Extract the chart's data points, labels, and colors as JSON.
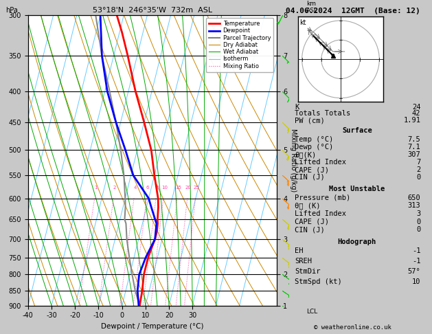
{
  "title_left": "53°18'N  246°35'W  732m  ASL",
  "title_right": "04.06.2024  12GMT  (Base: 12)",
  "xlabel": "Dewpoint / Temperature (°C)",
  "p_levels": [
    300,
    350,
    400,
    450,
    500,
    550,
    600,
    650,
    700,
    750,
    800,
    850,
    900
  ],
  "temp_ticks": [
    -40,
    -30,
    -20,
    -10,
    0,
    10,
    20,
    30
  ],
  "km_ticks": [
    1,
    2,
    3,
    4,
    5,
    6,
    7,
    8
  ],
  "km_pressures": [
    900,
    800,
    700,
    600,
    500,
    400,
    350,
    300
  ],
  "plot_bg": "#ffffff",
  "skew_factor": 28.0,
  "legend_entries": [
    {
      "label": "Temperature",
      "color": "#ff0000",
      "lw": 2.0,
      "ls": "-"
    },
    {
      "label": "Dewpoint",
      "color": "#0000ff",
      "lw": 2.0,
      "ls": "-"
    },
    {
      "label": "Parcel Trajectory",
      "color": "#808080",
      "lw": 1.5,
      "ls": "-"
    },
    {
      "label": "Dry Adiabat",
      "color": "#cc8800",
      "lw": 0.8,
      "ls": "-"
    },
    {
      "label": "Wet Adiabat",
      "color": "#00aa00",
      "lw": 0.8,
      "ls": "-"
    },
    {
      "label": "Isotherm",
      "color": "#66ccff",
      "lw": 0.8,
      "ls": "-"
    },
    {
      "label": "Mixing Ratio",
      "color": "#ff44aa",
      "lw": 0.8,
      "ls": ":"
    }
  ],
  "temp_profile": {
    "pressure": [
      300,
      320,
      350,
      400,
      450,
      500,
      550,
      600,
      620,
      650,
      660,
      680,
      700,
      750,
      800,
      850,
      900
    ],
    "temp": [
      -33,
      -29,
      -24,
      -17,
      -10,
      -4,
      0,
      4,
      5,
      6,
      6.5,
      7,
      7,
      6,
      6,
      7,
      7.5
    ]
  },
  "dewp_profile": {
    "pressure": [
      300,
      350,
      400,
      450,
      500,
      550,
      600,
      620,
      650,
      660,
      680,
      700,
      750,
      800,
      850,
      900
    ],
    "temp": [
      -40,
      -35,
      -29,
      -22,
      -15,
      -9,
      0,
      2,
      5,
      6,
      6.5,
      7,
      5,
      4,
      5,
      7.1
    ]
  },
  "parcel_profile": {
    "pressure": [
      900,
      850,
      800,
      750,
      700,
      660,
      650,
      620,
      600,
      550,
      500,
      450,
      400,
      350,
      300
    ],
    "temp": [
      7.5,
      4,
      1,
      -2,
      -5,
      -7,
      -8,
      -9,
      -10,
      -13,
      -17,
      -22,
      -28,
      -35,
      -42
    ]
  },
  "stats": {
    "K": 24,
    "Totals_Totals": 42,
    "PW_cm": "1.91",
    "Surface_Temp": "7.5",
    "Surface_Dewp": "7.1",
    "Surface_theta_e": 307,
    "Surface_Lifted_Index": 7,
    "Surface_CAPE": 2,
    "Surface_CIN": 0,
    "MU_Pressure": 650,
    "MU_theta_e": 313,
    "MU_Lifted_Index": 3,
    "MU_CAPE": 0,
    "MU_CIN": 0,
    "EH": -1,
    "SREH": -1,
    "StmDir": "57°",
    "StmSpd_kt": 10
  },
  "wind_pressures": [
    900,
    850,
    800,
    750,
    700,
    650,
    600,
    550,
    500,
    450,
    400,
    350,
    300
  ],
  "wind_u_ms": [
    -2,
    -3,
    -4,
    -5,
    -6,
    -7,
    -8,
    -9,
    -7,
    -5,
    -3,
    -2,
    1
  ],
  "wind_v_ms": [
    1,
    2,
    3,
    4,
    5,
    6,
    7,
    8,
    7,
    5,
    3,
    2,
    2
  ],
  "hodo_u_kt": [
    -4,
    -6,
    -8,
    -10,
    -12,
    -14,
    -16,
    -17,
    -14,
    -10,
    -6,
    -4,
    2
  ],
  "hodo_v_kt": [
    2,
    4,
    6,
    8,
    10,
    12,
    14,
    16,
    14,
    10,
    6,
    4,
    4
  ]
}
